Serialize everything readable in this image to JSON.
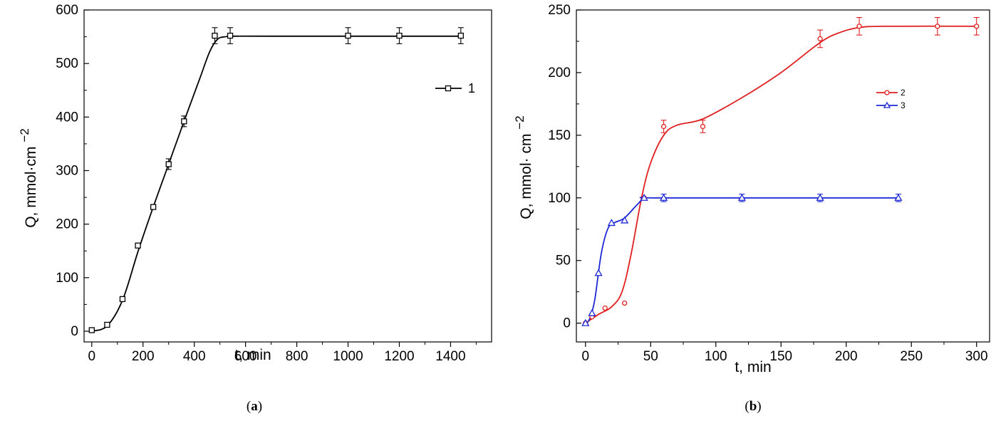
{
  "chart_data": [
    {
      "panel": "(a)",
      "type": "line",
      "xlabel": "t, min",
      "ylabel": "Q, mmol·cm",
      "ylabel_sup": "−2",
      "xlim": [
        -30,
        1560
      ],
      "ylim": [
        -20,
        600
      ],
      "xticks": [
        "0",
        "200",
        "400",
        "600",
        "800",
        "1000",
        "1200",
        "1400"
      ],
      "yticks": [
        "0",
        "100",
        "200",
        "300",
        "400",
        "500",
        "600"
      ],
      "grid": false,
      "legend_position": "top-right",
      "series": [
        {
          "name": "1",
          "color": "#000000",
          "marker": "square",
          "x": [
            0,
            60,
            120,
            180,
            240,
            300,
            360,
            480,
            540,
            1000,
            1200,
            1440
          ],
          "y": [
            2,
            12,
            60,
            160,
            232,
            312,
            392,
            552,
            552,
            552,
            552,
            552
          ],
          "error": [
            0,
            0,
            0,
            0,
            0,
            10,
            10,
            15,
            15,
            15,
            15,
            15
          ],
          "fit": [
            [
              0,
              0
            ],
            [
              60,
              10
            ],
            [
              120,
              58
            ],
            [
              180,
              148
            ],
            [
              240,
              232
            ],
            [
              300,
              312
            ],
            [
              360,
              392
            ],
            [
              420,
              470
            ],
            [
              460,
              522
            ],
            [
              490,
              545
            ],
            [
              520,
              550
            ],
            [
              560,
              551
            ],
            [
              700,
              551
            ],
            [
              1440,
              551
            ]
          ]
        }
      ]
    },
    {
      "panel": "(b)",
      "type": "line",
      "xlabel": "t, min",
      "ylabel": "Q, mmol· cm",
      "ylabel_sup": "−2",
      "xlim": [
        -7,
        310
      ],
      "ylim": [
        -15,
        250
      ],
      "xticks": [
        "0",
        "50",
        "100",
        "150",
        "200",
        "250",
        "300"
      ],
      "yticks": [
        "0",
        "50",
        "100",
        "150",
        "200",
        "250"
      ],
      "grid": false,
      "legend_position": "top-right",
      "series": [
        {
          "name": "2",
          "color": "#e02020",
          "marker": "circle",
          "x": [
            0,
            5,
            15,
            30,
            45,
            60,
            90,
            180,
            210,
            270,
            300
          ],
          "y": [
            0,
            5,
            12,
            16,
            100,
            157,
            157,
            227,
            237,
            237,
            237
          ],
          "error": [
            0,
            0,
            0,
            0,
            0,
            5,
            5,
            7,
            7,
            7,
            7
          ],
          "fit": [
            [
              0,
              0
            ],
            [
              10,
              7
            ],
            [
              20,
              13
            ],
            [
              28,
              25
            ],
            [
              35,
              55
            ],
            [
              43,
              100
            ],
            [
              50,
              128
            ],
            [
              60,
              150
            ],
            [
              70,
              158
            ],
            [
              90,
              163
            ],
            [
              120,
              180
            ],
            [
              150,
              200
            ],
            [
              180,
              224
            ],
            [
              195,
              232
            ],
            [
              210,
              236
            ],
            [
              230,
              237
            ],
            [
              300,
              237
            ]
          ]
        },
        {
          "name": "3",
          "color": "#1c28d4",
          "marker": "triangle",
          "x": [
            0,
            5,
            10,
            20,
            30,
            45,
            60,
            120,
            180,
            240
          ],
          "y": [
            0,
            8,
            40,
            80,
            82,
            100,
            100,
            100,
            100,
            100
          ],
          "error": [
            0,
            0,
            0,
            0,
            0,
            0,
            3,
            3,
            3,
            3
          ],
          "fit": [
            [
              0,
              0
            ],
            [
              3,
              3
            ],
            [
              7,
              18
            ],
            [
              12,
              55
            ],
            [
              17,
              75
            ],
            [
              22,
              80
            ],
            [
              30,
              84
            ],
            [
              40,
              95
            ],
            [
              46,
              100
            ],
            [
              60,
              100
            ],
            [
              240,
              100
            ]
          ]
        }
      ]
    }
  ]
}
